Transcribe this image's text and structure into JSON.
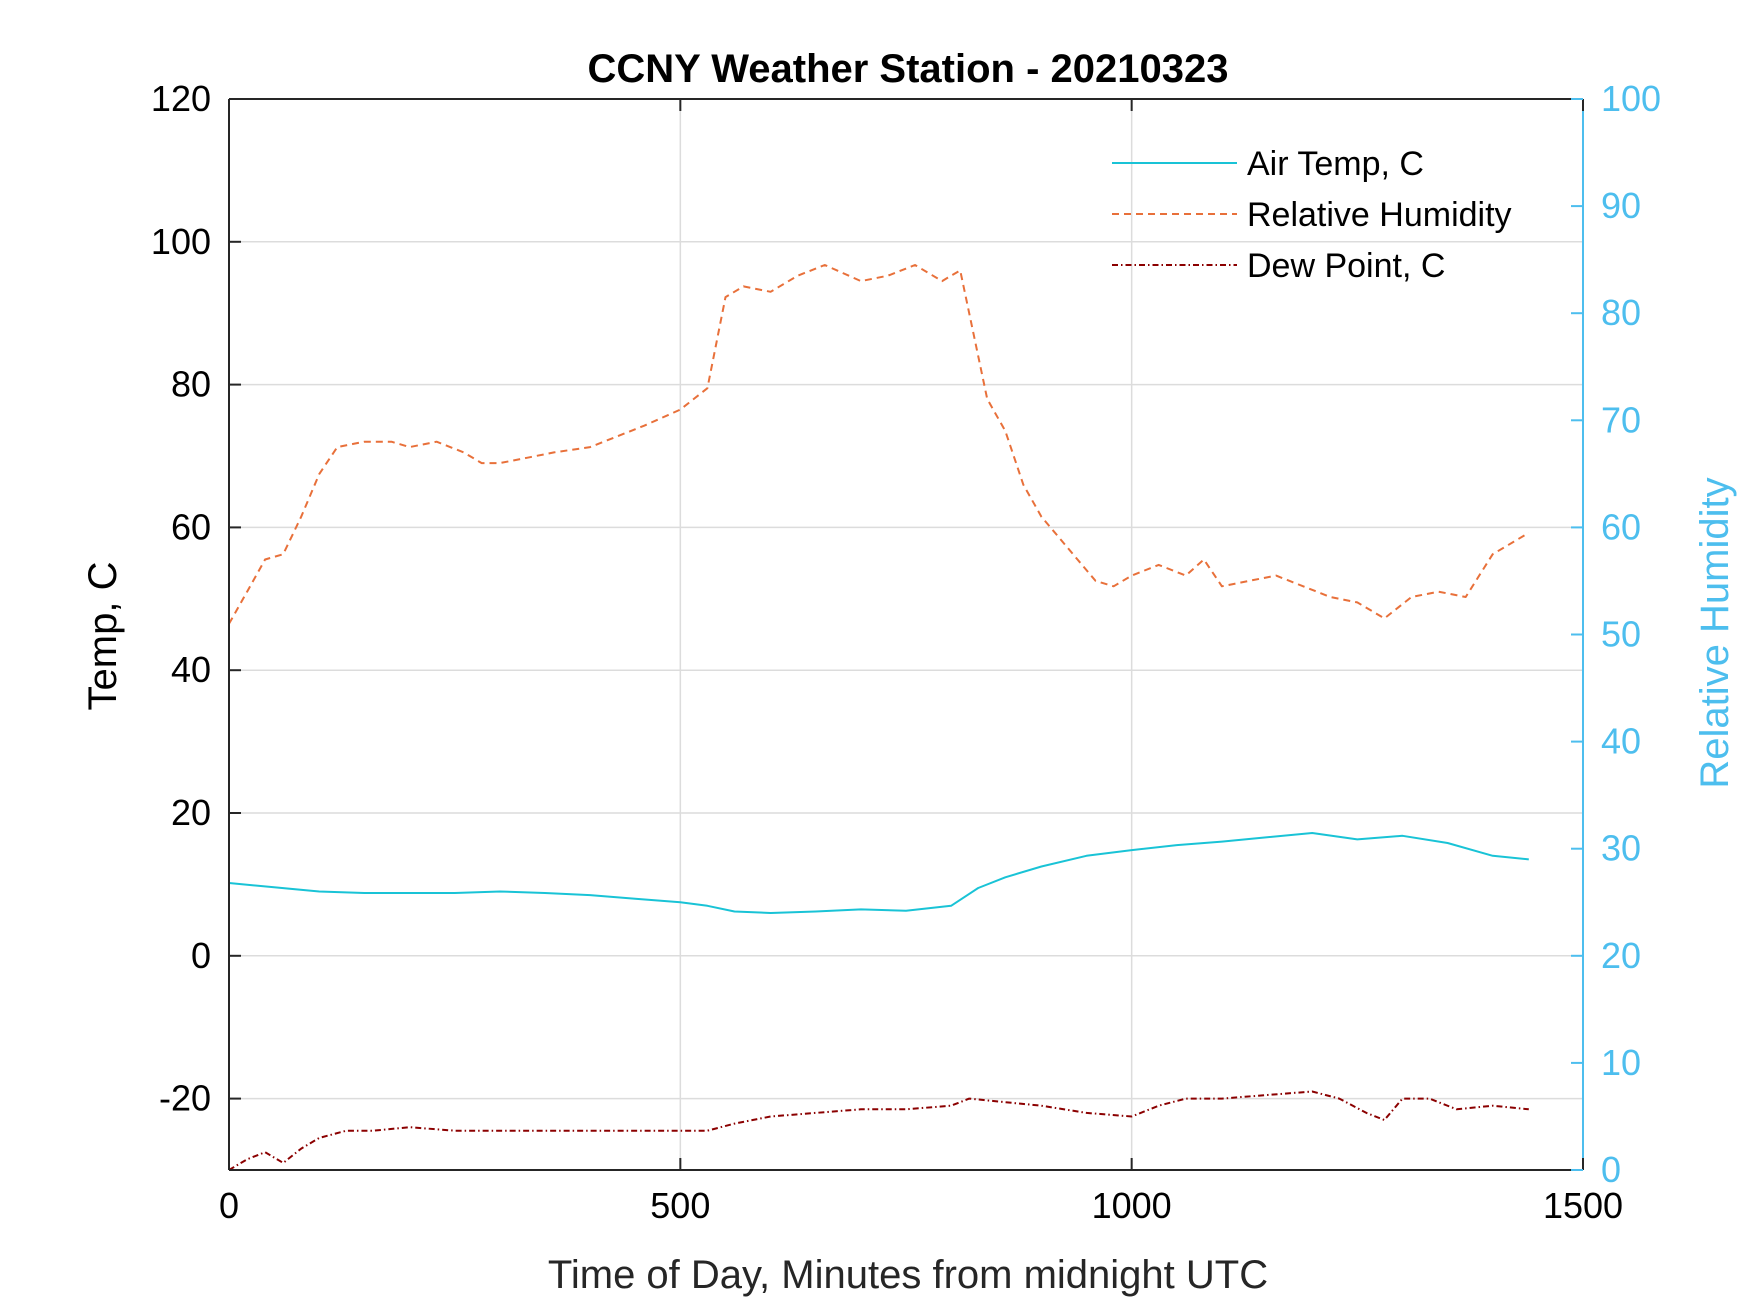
{
  "chart_data": {
    "type": "line",
    "title": "CCNY Weather Station - 20210323",
    "xlabel": "Time of Day, Minutes from midnight UTC",
    "ylabel_left": "Temp, C",
    "ylabel_right": "Relative Humidity",
    "xlim": [
      0,
      1500
    ],
    "ylim_left": [
      -30,
      120
    ],
    "ylim_right": [
      0,
      100
    ],
    "xticks": [
      0,
      500,
      1000,
      1500
    ],
    "yticks_left": [
      -20,
      0,
      20,
      40,
      60,
      80,
      100,
      120
    ],
    "yticks_right": [
      0,
      10,
      20,
      30,
      40,
      50,
      60,
      70,
      80,
      90,
      100
    ],
    "grid": true,
    "legend_position": "top-right",
    "colors": {
      "air_temp": "#19C3D6",
      "humidity": "#E8703A",
      "dew_point": "#8B0000",
      "right_axis": "#4DBEEE"
    },
    "series": [
      {
        "name": "Air Temp, C",
        "axis": "left",
        "style": "solid",
        "x": [
          0,
          50,
          100,
          150,
          200,
          250,
          300,
          350,
          400,
          450,
          500,
          530,
          560,
          600,
          650,
          700,
          750,
          800,
          830,
          860,
          900,
          950,
          1000,
          1050,
          1100,
          1150,
          1200,
          1250,
          1300,
          1350,
          1400,
          1440
        ],
        "y": [
          10.2,
          9.6,
          9.0,
          8.8,
          8.8,
          8.8,
          9.0,
          8.8,
          8.5,
          8.0,
          7.5,
          7.0,
          6.2,
          6.0,
          6.2,
          6.5,
          6.3,
          7.0,
          9.5,
          11.0,
          12.5,
          14.0,
          14.8,
          15.5,
          16.0,
          16.6,
          17.2,
          16.3,
          16.8,
          15.8,
          14.0,
          13.5
        ]
      },
      {
        "name": "Relative Humidity",
        "axis": "right",
        "style": "dashed",
        "x": [
          0,
          20,
          40,
          60,
          80,
          100,
          120,
          150,
          180,
          200,
          230,
          260,
          280,
          300,
          330,
          360,
          400,
          430,
          460,
          500,
          530,
          550,
          570,
          600,
          630,
          660,
          700,
          730,
          760,
          790,
          800,
          810,
          825,
          840,
          860,
          880,
          900,
          920,
          940,
          960,
          980,
          1000,
          1030,
          1060,
          1080,
          1100,
          1130,
          1160,
          1190,
          1220,
          1250,
          1280,
          1310,
          1340,
          1370,
          1400,
          1440
        ],
        "y": [
          51,
          54,
          57,
          57.5,
          61,
          65,
          67.5,
          68,
          68,
          67.5,
          68,
          67,
          66,
          66,
          66.5,
          67,
          67.5,
          68.5,
          69.5,
          71,
          73,
          81.5,
          82.5,
          82,
          83.5,
          84.5,
          83,
          83.5,
          84.5,
          83,
          83.5,
          84,
          78,
          72,
          69,
          64,
          61,
          59,
          57,
          55,
          54.5,
          55.5,
          56.5,
          55.5,
          57,
          54.5,
          55,
          55.5,
          54.5,
          53.5,
          53,
          51.5,
          53.5,
          54,
          53.5,
          57.5,
          59.5
        ]
      },
      {
        "name": "Dew Point, C",
        "axis": "left",
        "style": "dash-dot",
        "x": [
          0,
          20,
          40,
          60,
          80,
          100,
          130,
          160,
          200,
          250,
          300,
          350,
          400,
          450,
          500,
          530,
          560,
          600,
          650,
          700,
          750,
          800,
          820,
          860,
          900,
          950,
          1000,
          1030,
          1060,
          1100,
          1150,
          1200,
          1230,
          1260,
          1280,
          1300,
          1330,
          1360,
          1400,
          1440
        ],
        "y": [
          -30,
          -28.5,
          -27.5,
          -29,
          -27,
          -25.5,
          -24.5,
          -24.5,
          -24,
          -24.5,
          -24.5,
          -24.5,
          -24.5,
          -24.5,
          -24.5,
          -24.5,
          -23.5,
          -22.5,
          -22,
          -21.5,
          -21.5,
          -21,
          -20,
          -20.5,
          -21,
          -22,
          -22.5,
          -21,
          -20,
          -20,
          -19.5,
          -19,
          -20,
          -22,
          -23,
          -20,
          -20,
          -21.5,
          -21,
          -21.5
        ]
      }
    ]
  }
}
